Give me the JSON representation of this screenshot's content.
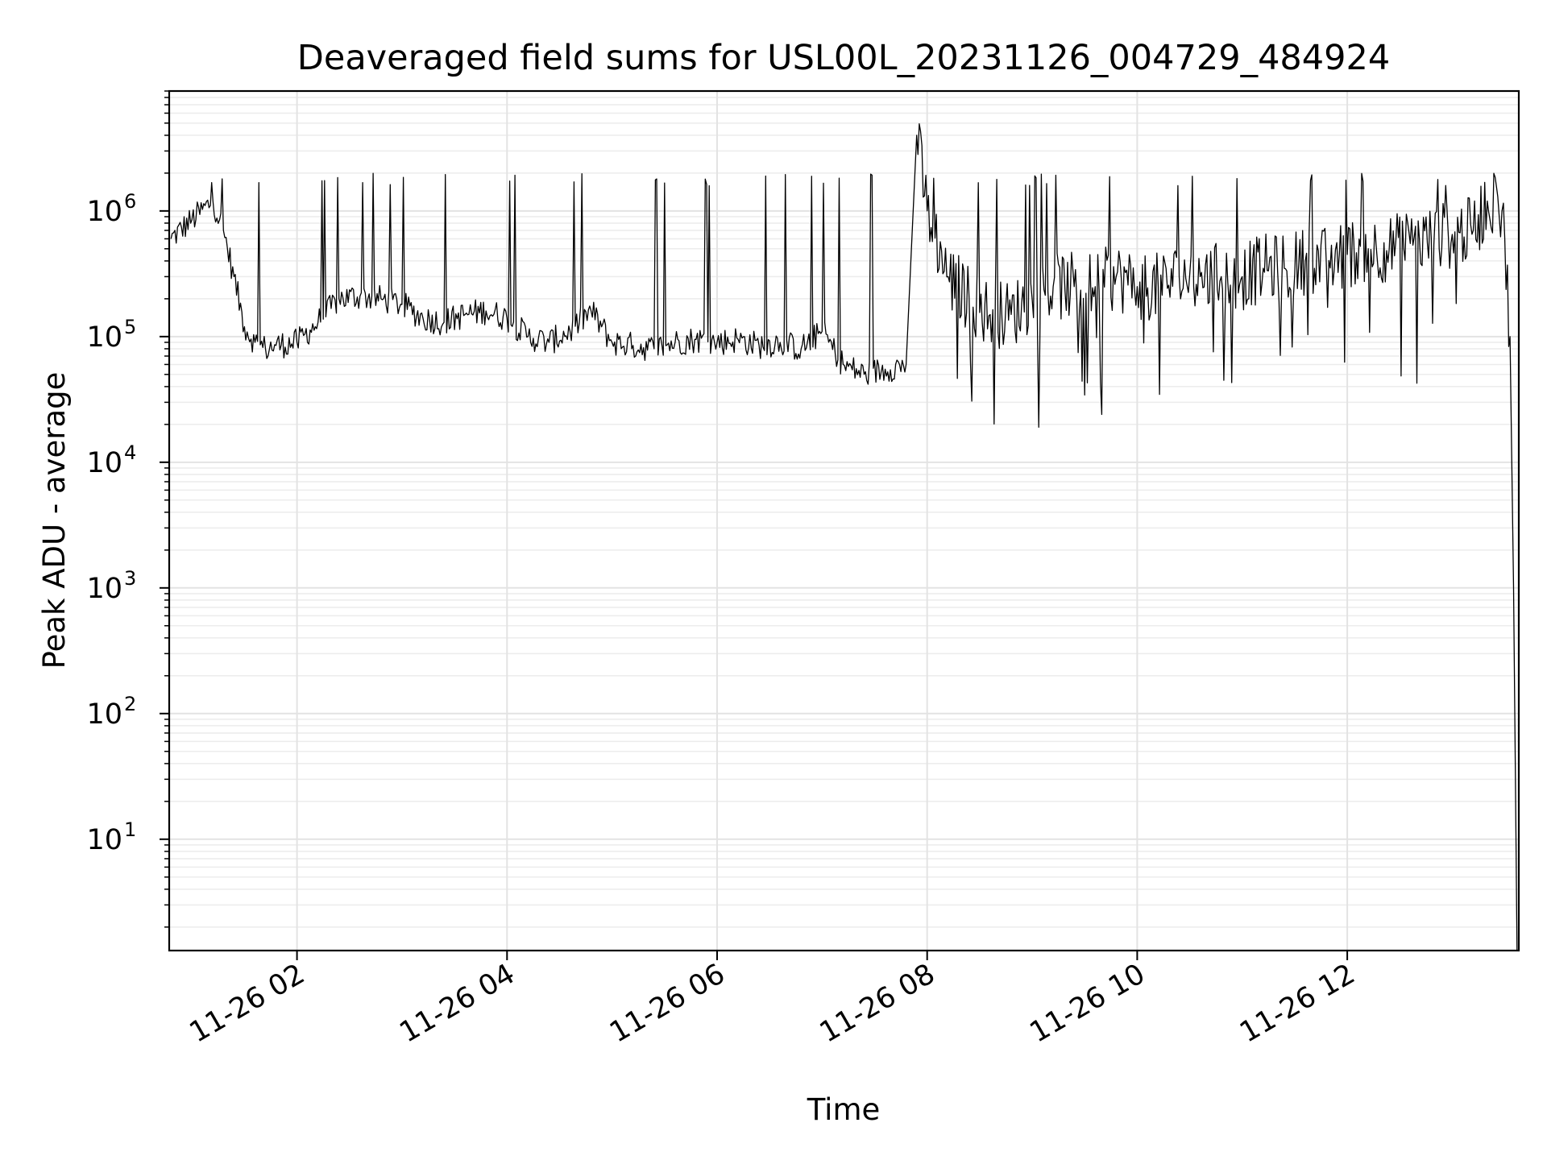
{
  "chart_data": {
    "type": "line",
    "title": "Deaveraged field sums for USL00L_20231126_004729_484924",
    "xlabel": "Time",
    "ylabel": "Peak ADU - average",
    "y_scale": "log",
    "ylim": [
      1.3,
      9000000
    ],
    "xlim": [
      "2023-11-26 00:47",
      "2023-11-26 13:38"
    ],
    "grid": true,
    "line_color": "#000000",
    "x_ticks": [
      {
        "label": "11-26 02",
        "x": "2023-11-26 02:00"
      },
      {
        "label": "11-26 04",
        "x": "2023-11-26 04:00"
      },
      {
        "label": "11-26 06",
        "x": "2023-11-26 06:00"
      },
      {
        "label": "11-26 08",
        "x": "2023-11-26 08:00"
      },
      {
        "label": "11-26 10",
        "x": "2023-11-26 10:00"
      },
      {
        "label": "11-26 12",
        "x": "2023-11-26 12:00"
      }
    ],
    "y_ticks": [
      {
        "base": "10",
        "exp": "1",
        "value": 10
      },
      {
        "base": "10",
        "exp": "2",
        "value": 100
      },
      {
        "base": "10",
        "exp": "3",
        "value": 1000
      },
      {
        "base": "10",
        "exp": "4",
        "value": 10000
      },
      {
        "base": "10",
        "exp": "5",
        "value": 100000
      },
      {
        "base": "10",
        "exp": "6",
        "value": 1000000
      }
    ],
    "series": [
      {
        "x": [
          "2023-11-26 00:48",
          "2023-11-26 01:00",
          "2023-11-26 01:12",
          "2023-11-26 01:18",
          "2023-11-26 01:24",
          "2023-11-26 01:30",
          "2023-11-26 01:36",
          "2023-11-26 01:42",
          "2023-11-26 01:48",
          "2023-11-26 02:00",
          "2023-11-26 02:12",
          "2023-11-26 02:24",
          "2023-11-26 02:36",
          "2023-11-26 02:48",
          "2023-11-26 03:00",
          "2023-11-26 03:12",
          "2023-11-26 03:24",
          "2023-11-26 03:36",
          "2023-11-26 03:48",
          "2023-11-26 04:00",
          "2023-11-26 04:12",
          "2023-11-26 04:24",
          "2023-11-26 04:36",
          "2023-11-26 04:48",
          "2023-11-26 05:00",
          "2023-11-26 05:12",
          "2023-11-26 05:24",
          "2023-11-26 05:36",
          "2023-11-26 05:48",
          "2023-11-26 06:00",
          "2023-11-26 06:12",
          "2023-11-26 06:24",
          "2023-11-26 06:36",
          "2023-11-26 06:48",
          "2023-11-26 07:00",
          "2023-11-26 07:12",
          "2023-11-26 07:24",
          "2023-11-26 07:36",
          "2023-11-26 07:48",
          "2023-11-26 07:54",
          "2023-11-26 08:00",
          "2023-11-26 08:12",
          "2023-11-26 08:24",
          "2023-11-26 08:36",
          "2023-11-26 08:48",
          "2023-11-26 09:00",
          "2023-11-26 09:12",
          "2023-11-26 09:24",
          "2023-11-26 09:36",
          "2023-11-26 09:48",
          "2023-11-26 10:00",
          "2023-11-26 10:12",
          "2023-11-26 10:24",
          "2023-11-26 10:36",
          "2023-11-26 10:48",
          "2023-11-26 11:00",
          "2023-11-26 11:12",
          "2023-11-26 11:24",
          "2023-11-26 11:36",
          "2023-11-26 11:48",
          "2023-11-26 12:00",
          "2023-11-26 12:12",
          "2023-11-26 12:24",
          "2023-11-26 12:36",
          "2023-11-26 12:48",
          "2023-11-26 13:00",
          "2023-11-26 13:12",
          "2023-11-26 13:20",
          "2023-11-26 13:26",
          "2023-11-26 13:30",
          "2023-11-26 13:33",
          "2023-11-26 13:35",
          "2023-11-26 13:37"
        ],
        "y": [
          600000,
          850000,
          1200000,
          700000,
          300000,
          120000,
          90000,
          80000,
          85000,
          90000,
          130000,
          200000,
          210000,
          200000,
          180000,
          140000,
          130000,
          150000,
          160000,
          140000,
          100000,
          90000,
          110000,
          160000,
          90000,
          85000,
          80000,
          90000,
          95000,
          90000,
          95000,
          85000,
          90000,
          80000,
          110000,
          60000,
          50000,
          55000,
          60000,
          4000000,
          1000000,
          300000,
          200000,
          150000,
          150000,
          200000,
          250000,
          250000,
          250000,
          300000,
          250000,
          250000,
          300000,
          300000,
          300000,
          300000,
          350000,
          350000,
          400000,
          400000,
          450000,
          500000,
          500000,
          550000,
          600000,
          650000,
          700000,
          1200000,
          1300000,
          600000,
          100000,
          1000,
          1.3
        ]
      }
    ]
  }
}
